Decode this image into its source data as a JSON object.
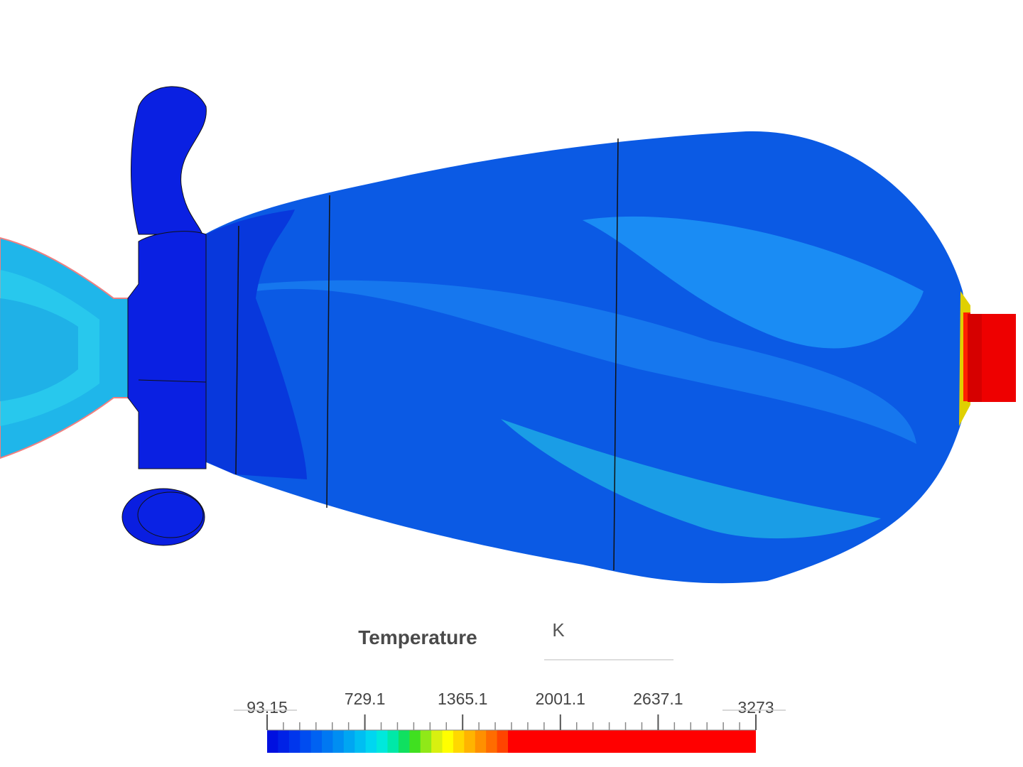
{
  "legend": {
    "title": "Temperature",
    "unit": "K",
    "ticks": [
      93.15,
      729.1,
      1365.1,
      2001.1,
      2637.1,
      3273
    ]
  }
}
